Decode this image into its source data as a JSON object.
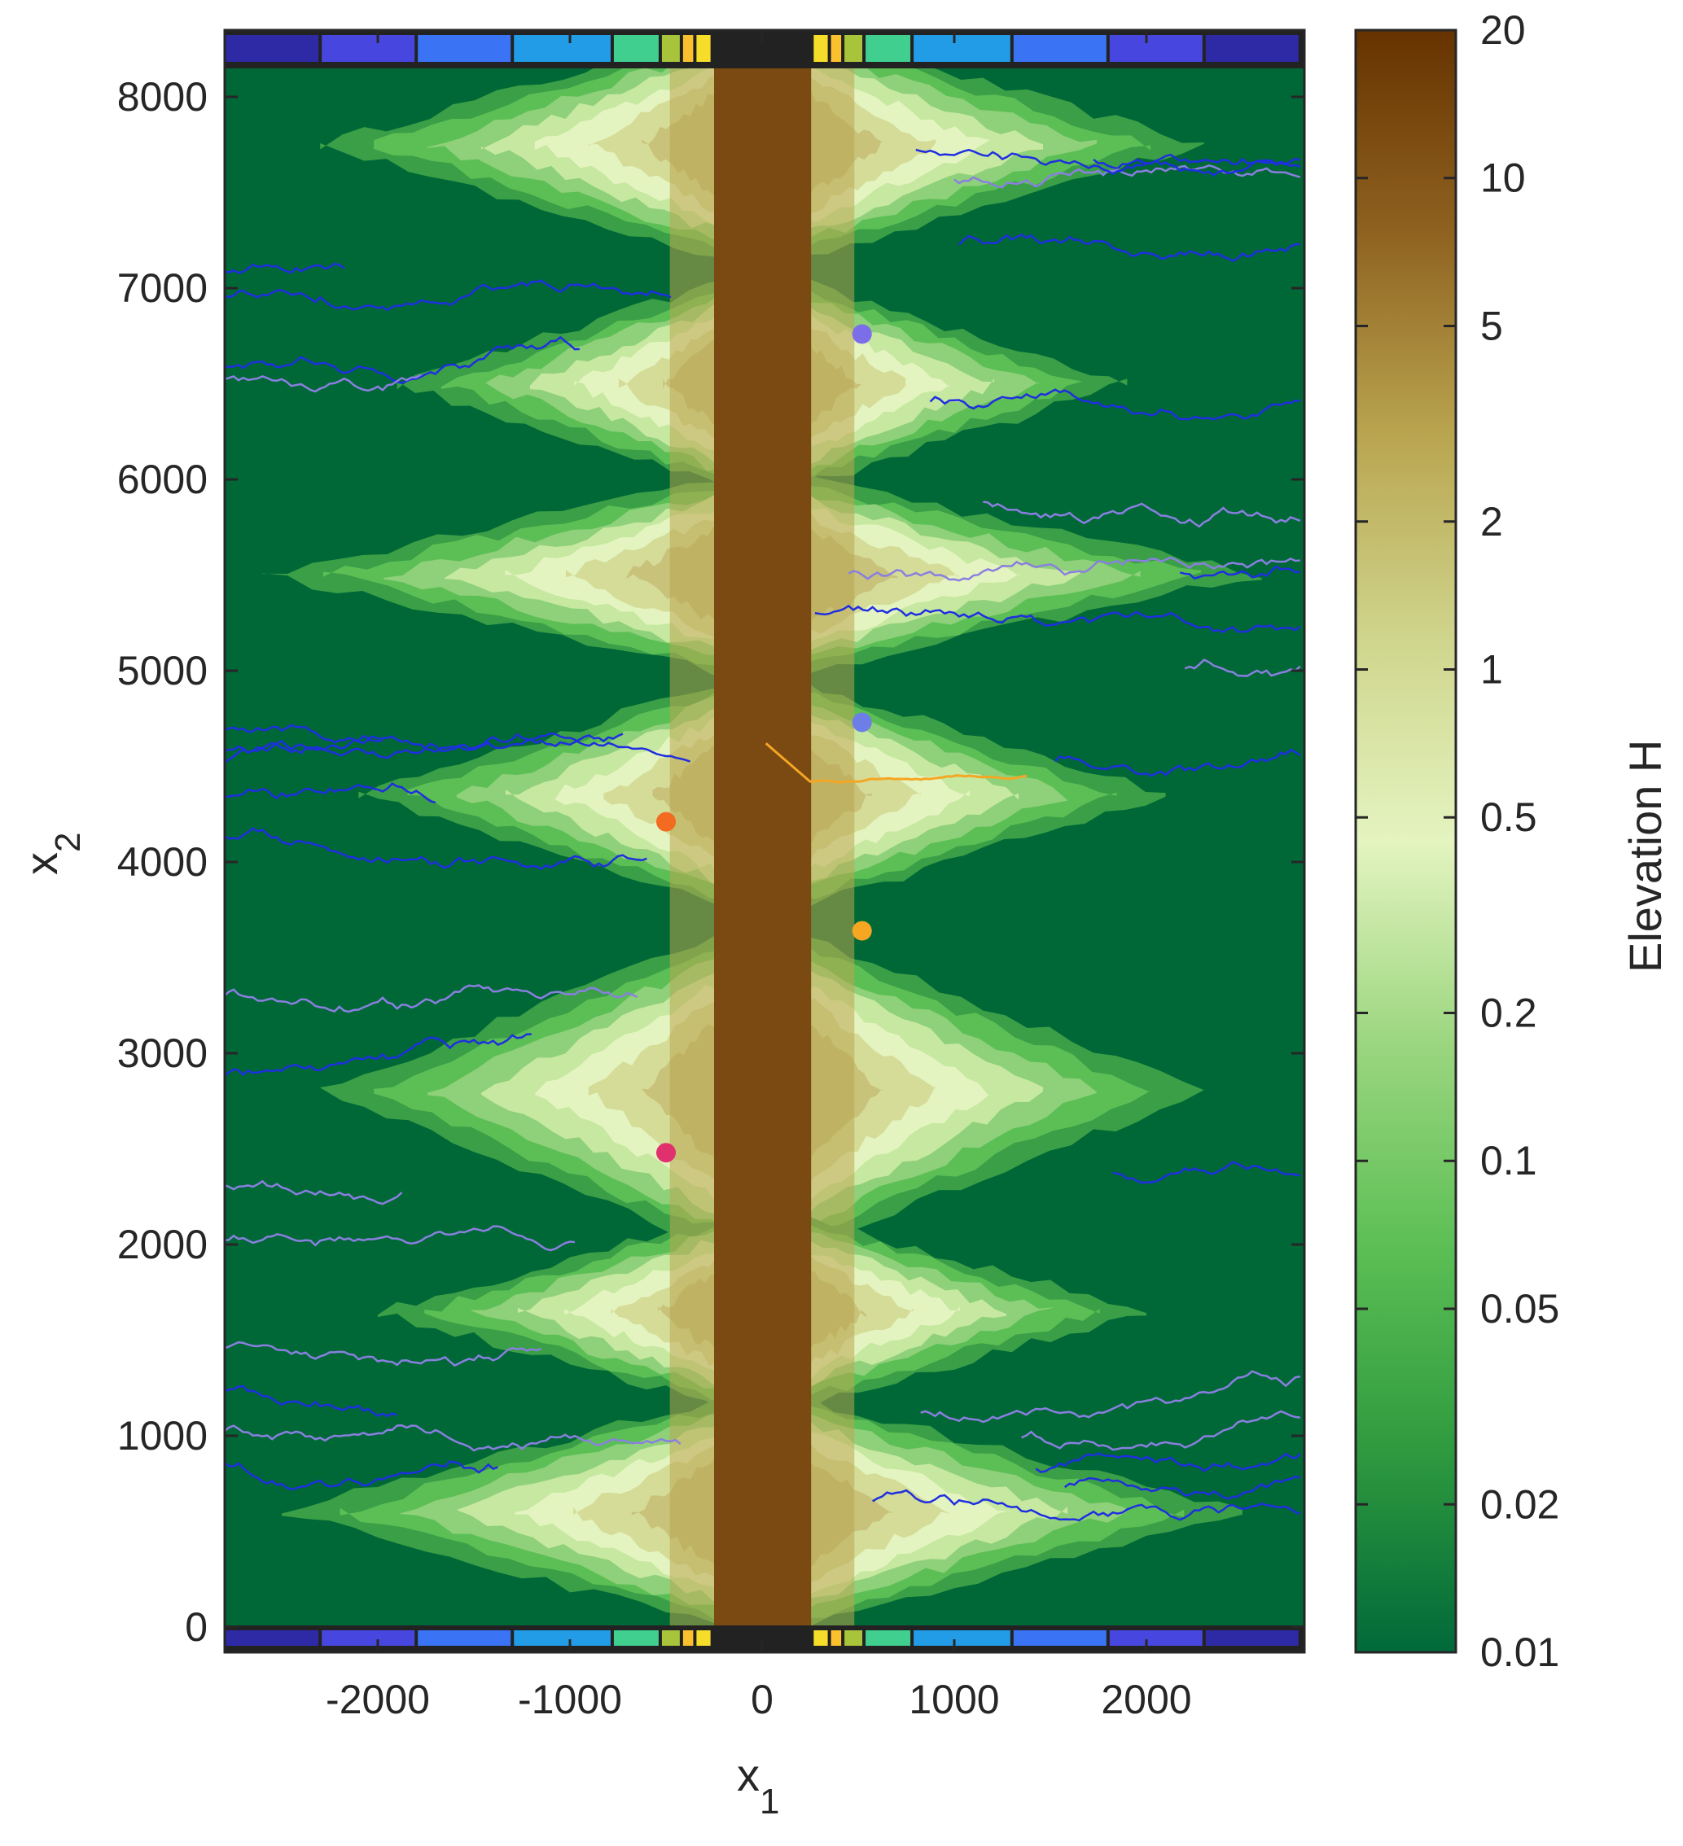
{
  "chart_data": {
    "type": "heatmap",
    "title": "",
    "xlabel": "x",
    "xlabel_sub": "1",
    "ylabel": "x",
    "ylabel_sub": "2",
    "xlim": [
      -2800,
      2800
    ],
    "ylim": [
      0,
      8200
    ],
    "xticks": [
      "-2000",
      "-1000",
      "0",
      "1000",
      "2000"
    ],
    "xtick_values": [
      -2000,
      -1000,
      0,
      1000,
      2000
    ],
    "yticks": [
      "0",
      "1000",
      "2000",
      "3000",
      "4000",
      "5000",
      "6000",
      "7000",
      "8000"
    ],
    "ytick_values": [
      0,
      1000,
      2000,
      3000,
      4000,
      5000,
      6000,
      7000,
      8000
    ],
    "colorbar": {
      "label": "Elevation H",
      "scale": "log",
      "range": [
        0.01,
        20
      ],
      "ticks": [
        "20",
        "10",
        "5",
        "2",
        "1",
        "0.5",
        "0.2",
        "0.1",
        "0.05",
        "0.02",
        "0.01"
      ],
      "tick_values": [
        20,
        10,
        5,
        2,
        1,
        0.5,
        0.2,
        0.1,
        0.05,
        0.02,
        0.01
      ],
      "colors": [
        "#00693a",
        "#2f9a3e",
        "#5cbf55",
        "#9bd67f",
        "#e4f4c0",
        "#cfd58c",
        "#b9a550",
        "#8f6220",
        "#663300"
      ]
    },
    "ridge_band": {
      "x_range": [
        -250,
        255
      ],
      "elevation": "10-20"
    },
    "boundary_strip": {
      "edges": [
        -2800,
        -2300,
        -1800,
        -1300,
        -780,
        -530,
        -420,
        -350,
        -260,
        260,
        350,
        420,
        530,
        780,
        1300,
        1800,
        2300,
        2800
      ],
      "colors": [
        "#2e2aa6",
        "#4747e0",
        "#3a74f5",
        "#229ce6",
        "#40cf8f",
        "#a8c43a",
        "#fbc02d",
        "#f5dd2a",
        "#222222",
        "#f5dd2a",
        "#fbc02d",
        "#a8c43a",
        "#40cf8f",
        "#229ce6",
        "#3a74f5",
        "#4747e0",
        "#2e2aa6"
      ]
    },
    "valleys": [
      {
        "y": 7750,
        "half_height": 650,
        "half_width": 2300
      },
      {
        "y": 6500,
        "half_height": 600,
        "half_width": 1900
      },
      {
        "y": 5500,
        "half_height": 550,
        "half_width": 2600
      },
      {
        "y": 4350,
        "half_height": 650,
        "half_width": 2100
      },
      {
        "y": 2800,
        "half_height": 900,
        "half_width": 2300
      },
      {
        "y": 1650,
        "half_height": 550,
        "half_width": 2000
      },
      {
        "y": 600,
        "half_height": 650,
        "half_width": 2500
      }
    ],
    "markers": [
      {
        "x": 520,
        "y": 6760,
        "color": "#7b6ee8"
      },
      {
        "x": 520,
        "y": 4730,
        "color": "#6d7fe6"
      },
      {
        "x": -500,
        "y": 4210,
        "color": "#f26b21"
      },
      {
        "x": 520,
        "y": 3640,
        "color": "#f5a623"
      },
      {
        "x": -500,
        "y": 2480,
        "color": "#e0306e"
      }
    ]
  }
}
